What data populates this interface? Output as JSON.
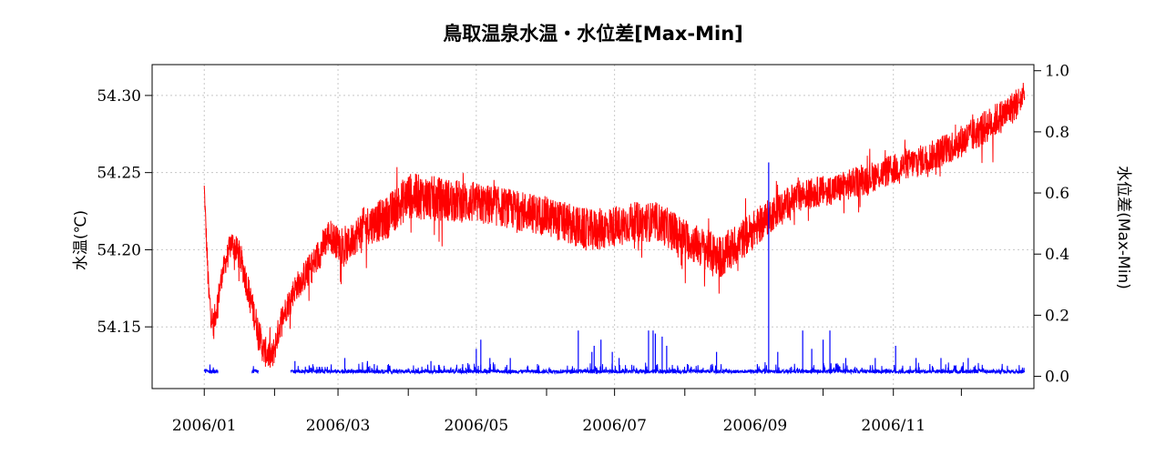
{
  "chart_data": {
    "type": "line",
    "title": "鳥取温泉水温・水位差[Max-Min]",
    "ylabel": "水温(℃)",
    "y2label": "水位差(Max-Min)",
    "x_ticks": [
      "2006/01",
      "2006/03",
      "2006/05",
      "2006/07",
      "2006/09",
      "2006/11"
    ],
    "y_ticks": [
      "54.15",
      "54.20",
      "54.25",
      "54.30"
    ],
    "y2_ticks": [
      "0.0",
      "0.2",
      "0.4",
      "0.6",
      "0.8",
      "1.0"
    ],
    "ylim": [
      54.11,
      54.32
    ],
    "y2lim": [
      -0.04,
      1.02
    ],
    "xlim_days": [
      -23,
      366
    ],
    "grid": true,
    "series": [
      {
        "color": "#ff0000",
        "axis": "left",
        "x_days": [
          0,
          2,
          4,
          8,
          12,
          16,
          20,
          26,
          30,
          34,
          40,
          48,
          55,
          62,
          70,
          80,
          90,
          110,
          130,
          150,
          170,
          190,
          200,
          215,
          228,
          240,
          252,
          262,
          280,
          300,
          320,
          340,
          355,
          362
        ],
        "values": [
          54.24,
          54.17,
          54.15,
          54.185,
          54.205,
          54.195,
          54.17,
          54.135,
          54.13,
          54.155,
          54.175,
          54.19,
          54.21,
          54.2,
          54.215,
          54.22,
          54.235,
          54.232,
          54.228,
          54.222,
          54.212,
          54.218,
          54.218,
          54.205,
          54.195,
          54.21,
          54.225,
          54.235,
          54.24,
          54.25,
          54.26,
          54.275,
          54.29,
          54.3
        ],
        "spread": [
          0.01,
          0.02,
          0.02,
          0.015,
          0.018,
          0.02,
          0.02,
          0.02,
          0.02,
          0.018,
          0.018,
          0.022,
          0.022,
          0.022,
          0.025,
          0.028,
          0.03,
          0.028,
          0.026,
          0.026,
          0.028,
          0.026,
          0.026,
          0.026,
          0.028,
          0.026,
          0.022,
          0.02,
          0.02,
          0.02,
          0.02,
          0.022,
          0.022,
          0.02
        ]
      },
      {
        "color": "#0000ff",
        "axis": "right",
        "baseline": 0.01,
        "gaps_days": [
          [
            6,
            21
          ],
          [
            24,
            39
          ]
        ],
        "short_pieces_days": [
          [
            2,
            5
          ],
          [
            38,
            39
          ],
          [
            40,
            41
          ]
        ],
        "spikes": [
          [
            40,
            0.05
          ],
          [
            62,
            0.06
          ],
          [
            72,
            0.05
          ],
          [
            75,
            0.04
          ],
          [
            100,
            0.05
          ],
          [
            114,
            0.04
          ],
          [
            120,
            0.09
          ],
          [
            122,
            0.12
          ],
          [
            126,
            0.06
          ],
          [
            135,
            0.06
          ],
          [
            147,
            0.04
          ],
          [
            165,
            0.15
          ],
          [
            171,
            0.08
          ],
          [
            172,
            0.1
          ],
          [
            175,
            0.12
          ],
          [
            180,
            0.08
          ],
          [
            183,
            0.06
          ],
          [
            196,
            0.15
          ],
          [
            198,
            0.15
          ],
          [
            199,
            0.14
          ],
          [
            202,
            0.13
          ],
          [
            204,
            0.1
          ],
          [
            226,
            0.08
          ],
          [
            244,
            0.04
          ],
          [
            249,
            0.7
          ],
          [
            253,
            0.08
          ],
          [
            264,
            0.15
          ],
          [
            268,
            0.09
          ],
          [
            273,
            0.12
          ],
          [
            276,
            0.15
          ],
          [
            283,
            0.06
          ],
          [
            296,
            0.06
          ],
          [
            305,
            0.1
          ],
          [
            314,
            0.06
          ],
          [
            325,
            0.06
          ],
          [
            337,
            0.06
          ]
        ]
      }
    ]
  }
}
